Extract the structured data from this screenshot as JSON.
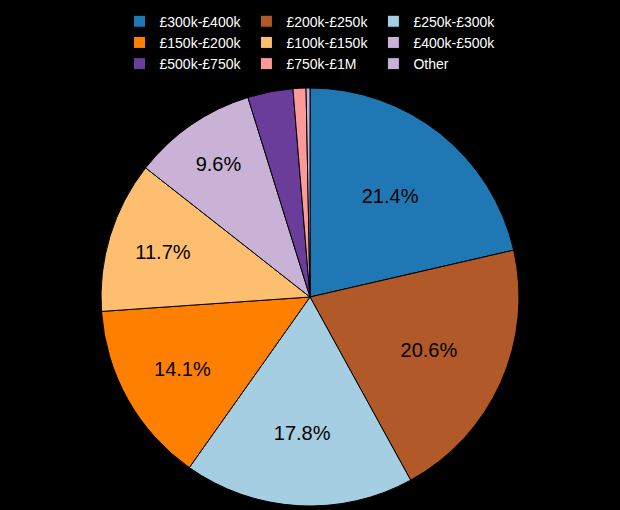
{
  "chart_data": {
    "type": "pie",
    "categories": [
      "£300k-£400k",
      "£200k-£250k",
      "£250k-£300k",
      "£150k-£200k",
      "£100k-£150k",
      "£400k-£500k",
      "£500k-£750k",
      "£750k-£1M",
      "Other"
    ],
    "values": [
      21.4,
      20.6,
      17.8,
      14.1,
      11.7,
      9.6,
      3.5,
      1.0,
      0.3
    ],
    "value_labels": [
      "21.4%",
      "20.6%",
      "17.8%",
      "14.1%",
      "11.7%",
      "9.6%",
      null,
      null,
      null
    ],
    "colors": [
      "#1f78b4",
      "#b15928",
      "#a6cee3",
      "#ff7f00",
      "#fdbf6f",
      "#cab2d6",
      "#6a3d9a",
      "#fb9a99",
      "#c8b1d8"
    ],
    "data_labels": true,
    "legend": "top"
  }
}
